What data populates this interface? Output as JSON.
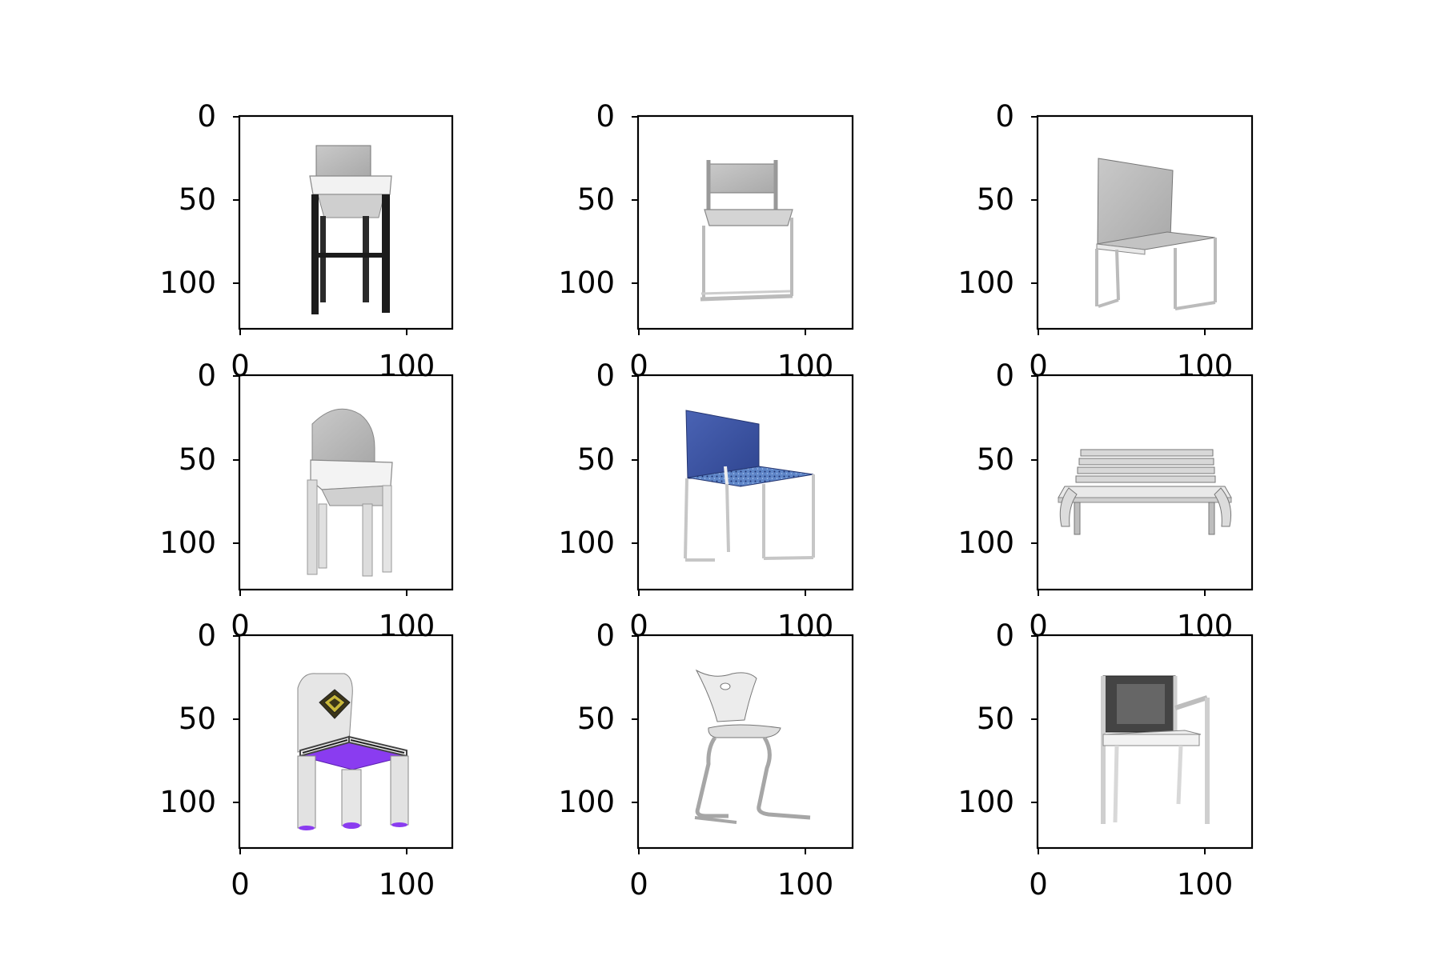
{
  "figure": {
    "grid": "3x3",
    "panels": [
      {
        "id": "p1",
        "subject": "bar stool with white seat and black legs",
        "x_ticks": [
          "0",
          "100"
        ],
        "y_ticks": [
          "0",
          "50",
          "100"
        ]
      },
      {
        "id": "p2",
        "subject": "white sled-base chair",
        "x_ticks": [
          "0",
          "100"
        ],
        "y_ticks": [
          "0",
          "50",
          "100"
        ]
      },
      {
        "id": "p3",
        "subject": "grey chair with tall back",
        "x_ticks": [
          "0",
          "100"
        ],
        "y_ticks": [
          "0",
          "50",
          "100"
        ]
      },
      {
        "id": "p4",
        "subject": "white chair with rounded back",
        "x_ticks": [
          "0",
          "100"
        ],
        "y_ticks": [
          "0",
          "50",
          "100"
        ]
      },
      {
        "id": "p5",
        "subject": "blue chair with patterned seat",
        "x_ticks": [
          "0",
          "100"
        ],
        "y_ticks": [
          "0",
          "50",
          "100"
        ]
      },
      {
        "id": "p6",
        "subject": "slatted bench",
        "x_ticks": [
          "0",
          "100"
        ],
        "y_ticks": [
          "0",
          "50",
          "100"
        ]
      },
      {
        "id": "p7",
        "subject": "white chair with emblem and purple seat",
        "x_ticks": [
          "0",
          "100"
        ],
        "y_ticks": [
          "0",
          "50",
          "100"
        ]
      },
      {
        "id": "p8",
        "subject": "cantilever chair with curved shell",
        "x_ticks": [
          "0",
          "100"
        ],
        "y_ticks": [
          "0",
          "50",
          "100"
        ]
      },
      {
        "id": "p9",
        "subject": "armchair with dark back",
        "x_ticks": [
          "0",
          "100"
        ],
        "y_ticks": [
          "0",
          "50",
          "100"
        ]
      }
    ],
    "colors": {
      "axis": "#000000",
      "background": "#ffffff",
      "blue_chair": "#3d57a8",
      "purple_seat": "#8a3cf0"
    }
  }
}
